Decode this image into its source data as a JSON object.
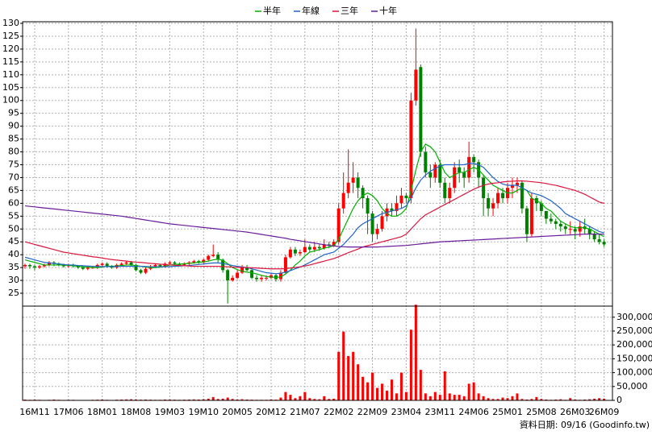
{
  "chart_data": [
    {
      "type": "candlestick",
      "categories": [
        null,
        null,
        "16M11",
        null,
        null,
        null,
        null,
        null,
        null,
        "17M06",
        null,
        null,
        null,
        null,
        null,
        null,
        "18M01",
        null,
        null,
        null,
        null,
        null,
        null,
        "18M08",
        null,
        null,
        null,
        null,
        null,
        null,
        "19M03",
        null,
        null,
        null,
        null,
        null,
        null,
        "19M10",
        null,
        null,
        null,
        null,
        null,
        null,
        "20M05",
        null,
        null,
        null,
        null,
        null,
        null,
        "20M12",
        null,
        null,
        null,
        null,
        null,
        null,
        "21M07",
        null,
        null,
        null,
        null,
        null,
        null,
        "22M02",
        null,
        null,
        null,
        null,
        null,
        null,
        "22M09",
        null,
        null,
        null,
        null,
        null,
        null,
        "23M04",
        null,
        null,
        null,
        null,
        null,
        null,
        "23M11",
        null,
        null,
        null,
        null,
        null,
        null,
        "24M06",
        null,
        null,
        null,
        null,
        null,
        null,
        "25M01",
        null,
        null,
        null,
        null,
        null,
        null,
        "25M08",
        null,
        null,
        null,
        null,
        null,
        null,
        "26M03",
        null,
        null,
        null,
        null,
        null,
        "26M09"
      ],
      "open": [
        35.5,
        36,
        35.5,
        35,
        35.5,
        36,
        37,
        36.5,
        36,
        35.5,
        36,
        35.5,
        35,
        34.5,
        35,
        35,
        36,
        36.5,
        35.5,
        35,
        36,
        36.5,
        37,
        36,
        34,
        33,
        34.5,
        35.5,
        36,
        35.5,
        36.5,
        37,
        36.5,
        36,
        36.5,
        37,
        37.5,
        37,
        38,
        39.5,
        40,
        38,
        34,
        30,
        31,
        33,
        35,
        34,
        31,
        30.5,
        31,
        31,
        32,
        30.5,
        33,
        39,
        42,
        40.5,
        41,
        43,
        42,
        43,
        42.5,
        44,
        43.5,
        45,
        58,
        64,
        68,
        70,
        66,
        62,
        56,
        48,
        50,
        55,
        58,
        57,
        60,
        63,
        62,
        100,
        113,
        80,
        72,
        70,
        75,
        68,
        62,
        66,
        74,
        72,
        70,
        78,
        76,
        70,
        62,
        58,
        60,
        64,
        62,
        66,
        67,
        68,
        58,
        48,
        62,
        60,
        57,
        54,
        53,
        52,
        51,
        50,
        50,
        49,
        51,
        50,
        48,
        46,
        45
      ],
      "high": [
        36.5,
        36.5,
        36,
        36,
        36.5,
        37.5,
        37.5,
        37,
        36.5,
        36.5,
        36.5,
        36,
        35.5,
        35.5,
        35.5,
        36.5,
        37,
        37,
        36,
        36.5,
        37,
        37.5,
        37.5,
        36.5,
        34.5,
        35,
        36,
        36.5,
        36.5,
        37,
        37.5,
        37.5,
        37,
        37,
        37.5,
        38,
        38,
        38.5,
        40,
        44,
        41,
        38.5,
        34.5,
        32,
        34,
        36,
        36,
        34.5,
        32,
        32,
        32,
        33,
        32.5,
        34,
        40,
        43,
        43,
        42,
        46,
        44,
        45,
        44,
        46,
        45,
        46,
        60,
        72,
        81,
        76,
        72,
        67,
        63,
        57,
        52,
        57,
        60,
        60,
        63,
        66,
        64,
        103,
        128,
        114,
        82,
        75,
        76,
        77,
        70,
        68,
        76,
        77,
        74,
        84,
        79,
        77,
        71,
        64,
        62,
        66,
        66,
        68,
        70,
        70,
        69,
        59,
        64,
        63,
        61,
        57,
        56,
        54,
        53,
        52,
        53,
        51,
        53,
        54,
        51,
        49,
        48,
        46
      ],
      "low": [
        34.5,
        34.5,
        34,
        34.5,
        35,
        35.5,
        35.5,
        35.5,
        35,
        35,
        35,
        34.5,
        34,
        34,
        34.5,
        34.5,
        35.5,
        35,
        34.5,
        34.5,
        35.5,
        36,
        35.5,
        33.5,
        32.5,
        32.5,
        34,
        35,
        35,
        35,
        36,
        36,
        35.5,
        35.5,
        36,
        36.5,
        36.5,
        36.5,
        37.5,
        39,
        37,
        33,
        21,
        29.5,
        30.5,
        32.5,
        33.5,
        30.5,
        29.5,
        29.5,
        30,
        30.5,
        29.5,
        29.5,
        32.5,
        38.5,
        39.5,
        39.5,
        40.5,
        41,
        41,
        41.5,
        42,
        42.5,
        43,
        44,
        56,
        62,
        64,
        62,
        58,
        48,
        45,
        46,
        49,
        53,
        55,
        55,
        58,
        60,
        60,
        98,
        78,
        70,
        66,
        68,
        66,
        60,
        60,
        64,
        68,
        66,
        68,
        72,
        66,
        55,
        55,
        55,
        58,
        60,
        60,
        62,
        64,
        56,
        45,
        47,
        57,
        55,
        52,
        52,
        50,
        49,
        48,
        48,
        46,
        47,
        48,
        46,
        45,
        44,
        43
      ],
      "close": [
        36,
        35.5,
        35,
        35.5,
        36,
        37,
        36.5,
        36,
        35.5,
        36,
        35.5,
        35,
        34.5,
        35,
        35,
        36,
        36.5,
        35.5,
        35,
        36,
        36.5,
        37,
        36,
        34,
        33,
        34.5,
        35.5,
        36,
        35.5,
        36.5,
        37,
        36.5,
        36,
        36.5,
        37,
        37.5,
        37,
        38,
        39.5,
        40,
        38,
        34,
        30,
        31,
        33,
        35,
        34,
        31,
        30.5,
        31,
        31,
        32,
        30.5,
        33,
        39,
        42,
        40.5,
        41,
        43,
        42,
        43,
        42.5,
        44,
        43.5,
        45,
        58,
        64,
        68,
        70,
        66,
        62,
        56,
        48,
        50,
        55,
        58,
        57,
        60,
        63,
        62,
        100,
        112,
        80,
        72,
        70,
        75,
        68,
        62,
        66,
        74,
        72,
        70,
        78,
        76,
        70,
        62,
        58,
        60,
        64,
        62,
        66,
        67,
        68,
        58,
        48,
        62,
        60,
        57,
        54,
        53,
        52,
        51,
        50,
        50,
        49,
        51,
        50,
        48,
        46,
        45,
        44
      ],
      "up_color": "#ff0000",
      "down_color": "#008000",
      "series": [
        {
          "name": "半年",
          "color": "#00b000",
          "values": [
            38,
            37.5,
            37,
            36.5,
            36,
            36,
            36,
            36,
            36,
            35.8,
            35.7,
            35.5,
            35.3,
            35.2,
            35,
            35,
            35.2,
            35.5,
            35.5,
            35.6,
            35.8,
            36,
            36,
            35.8,
            35.5,
            35.2,
            35,
            35,
            35.2,
            35.5,
            36,
            36.2,
            36.3,
            36.5,
            36.6,
            36.8,
            37,
            37.2,
            37.5,
            38,
            38.3,
            37.8,
            36.5,
            35,
            34.2,
            33.6,
            33.2,
            33,
            32.5,
            32,
            31.5,
            31.3,
            31.2,
            31.3,
            32.5,
            34,
            36,
            37.5,
            39.5,
            41,
            41.5,
            42,
            42.5,
            43,
            43.5,
            46,
            50,
            54,
            58,
            61,
            63,
            64,
            63,
            61,
            58,
            56,
            55,
            55,
            56,
            58,
            65,
            73,
            80,
            83,
            82,
            80,
            76,
            72,
            70,
            71,
            72,
            72,
            73,
            74,
            73,
            71,
            69,
            67,
            66,
            65,
            64,
            64,
            65,
            66,
            65,
            62,
            61,
            60,
            58,
            57,
            55,
            53,
            52,
            51,
            50.5,
            50.5,
            50.5,
            50,
            49,
            48,
            47
          ]
        },
        {
          "name": "年線",
          "color": "#1e64c8",
          "values": [
            39,
            38.5,
            38,
            37.5,
            37,
            36.8,
            36.6,
            36.4,
            36.2,
            36,
            36,
            35.8,
            35.7,
            35.6,
            35.5,
            35.4,
            35.4,
            35.4,
            35.4,
            35.4,
            35.5,
            35.5,
            35.5,
            35.5,
            35.5,
            35.4,
            35.3,
            35.3,
            35.3,
            35.3,
            35.4,
            35.5,
            35.6,
            35.7,
            35.8,
            36,
            36.2,
            36.4,
            36.6,
            36.8,
            36.8,
            36.6,
            36.2,
            35.8,
            35.5,
            35.2,
            35,
            34.5,
            34,
            33.5,
            33,
            32.8,
            32.6,
            32.8,
            33.2,
            33.8,
            34.5,
            35.2,
            36,
            37,
            38,
            39,
            40,
            40.5,
            41,
            42.5,
            44,
            46,
            48,
            50.5,
            52,
            53,
            54,
            55,
            56,
            56.5,
            57,
            57.5,
            58,
            59,
            62,
            66,
            69,
            71,
            72.5,
            73.5,
            74.5,
            75,
            75,
            75,
            75,
            75,
            75.5,
            75.5,
            75,
            74,
            72,
            70,
            68.5,
            67.5,
            67,
            67,
            67,
            66,
            65,
            64,
            63.5,
            63,
            62,
            61,
            59.5,
            58,
            56,
            55,
            54,
            53,
            52,
            51,
            50,
            49,
            48.5
          ]
        },
        {
          "name": "三年",
          "color": "#dc143c",
          "values": [
            45,
            44.5,
            44,
            43.5,
            43,
            42.5,
            42,
            41.5,
            41,
            40.7,
            40.4,
            40.1,
            39.8,
            39.5,
            39.2,
            39,
            38.7,
            38.4,
            38.1,
            37.9,
            37.7,
            37.5,
            37.3,
            37.1,
            37,
            36.8,
            36.6,
            36.5,
            36.3,
            36.2,
            36,
            35.9,
            35.8,
            35.7,
            35.6,
            35.5,
            35.5,
            35.5,
            35.5,
            35.5,
            35.5,
            35.4,
            35.3,
            35.2,
            35.1,
            35,
            35,
            34.9,
            34.8,
            34.7,
            34.6,
            34.5,
            34.5,
            34.5,
            34.6,
            34.8,
            35,
            35.3,
            35.6,
            36,
            36.5,
            37,
            37.5,
            38,
            38.5,
            39.2,
            40,
            40.8,
            41.5,
            42.2,
            43,
            43.5,
            44,
            44.5,
            45,
            45.5,
            46,
            46.5,
            47,
            48,
            50,
            52,
            54,
            55.5,
            56.5,
            57.5,
            58.5,
            59.5,
            60.5,
            61.5,
            62.5,
            63.5,
            64.5,
            65.5,
            66.3,
            67,
            67.5,
            67.8,
            68,
            68.3,
            68.5,
            68.6,
            68.7,
            68.7,
            68.6,
            68.4,
            68.2,
            68,
            67.7,
            67.3,
            67,
            66.5,
            66,
            65.5,
            65,
            64.3,
            63.5,
            62.5,
            61.5,
            60.5,
            60
          ]
        },
        {
          "name": "十年",
          "color": "#6a1b9a",
          "values": [
            59,
            58.8,
            58.6,
            58.4,
            58.2,
            58,
            57.8,
            57.6,
            57.4,
            57.2,
            57,
            56.8,
            56.6,
            56.4,
            56.2,
            56,
            55.8,
            55.6,
            55.4,
            55.2,
            55,
            54.7,
            54.4,
            54.1,
            53.8,
            53.5,
            53.2,
            52.9,
            52.6,
            52.3,
            52,
            51.8,
            51.6,
            51.4,
            51.2,
            51,
            50.8,
            50.6,
            50.4,
            50.2,
            50,
            49.8,
            49.6,
            49.4,
            49.2,
            49,
            48.8,
            48.5,
            48.2,
            47.9,
            47.6,
            47.3,
            47,
            46.7,
            46.4,
            46,
            45.7,
            45.4,
            45.1,
            44.8,
            44.5,
            44.2,
            43.9,
            43.6,
            43.4,
            43.2,
            43.1,
            43,
            43,
            43,
            43,
            43,
            43,
            43,
            43.1,
            43.2,
            43.3,
            43.4,
            43.5,
            43.6,
            43.8,
            44,
            44.2,
            44.4,
            44.6,
            44.8,
            45,
            45.1,
            45.2,
            45.3,
            45.4,
            45.5,
            45.6,
            45.7,
            45.8,
            45.9,
            46,
            46.1,
            46.2,
            46.3,
            46.4,
            46.5,
            46.6,
            46.7,
            46.8,
            46.9,
            47,
            47.1,
            47.2,
            47.3,
            47.4,
            47.5,
            47.6,
            47.7,
            47.8,
            47.9,
            48,
            48,
            48,
            48,
            48
          ]
        }
      ],
      "ylim": [
        20,
        130
      ],
      "yticks": [
        25,
        30,
        35,
        40,
        45,
        50,
        55,
        60,
        65,
        70,
        75,
        80,
        85,
        90,
        95,
        100,
        105,
        110,
        115,
        120,
        125,
        130
      ],
      "grid": true
    },
    {
      "type": "bar",
      "color": "#ff0000",
      "values": [
        3000,
        2000,
        2500,
        2000,
        1500,
        2000,
        3000,
        2000,
        1500,
        2000,
        2000,
        1500,
        1500,
        1500,
        2000,
        2500,
        3000,
        2000,
        1500,
        2500,
        3000,
        3500,
        4000,
        3000,
        2500,
        3000,
        2500,
        2000,
        2000,
        3000,
        3000,
        2500,
        2000,
        2500,
        3000,
        3500,
        3000,
        4000,
        6000,
        12000,
        5000,
        6000,
        10000,
        5000,
        3000,
        4000,
        3000,
        2500,
        2000,
        2000,
        2000,
        3000,
        2500,
        10000,
        30000,
        20000,
        8000,
        15000,
        30000,
        8000,
        5000,
        4000,
        15000,
        5000,
        6000,
        175000,
        248000,
        160000,
        175000,
        130000,
        85000,
        65000,
        100000,
        45000,
        60000,
        35000,
        75000,
        25000,
        100000,
        30000,
        255000,
        345000,
        110000,
        25000,
        15000,
        30000,
        20000,
        105000,
        25000,
        20000,
        20000,
        15000,
        60000,
        65000,
        25000,
        15000,
        8000,
        5000,
        5000,
        10000,
        8000,
        15000,
        25000,
        5000,
        3000,
        5000,
        12000,
        5000,
        3000,
        2000,
        3000,
        4000,
        2000,
        8000,
        3000,
        2000,
        3000,
        4000,
        6000,
        8000,
        6000
      ],
      "ylim": [
        0,
        340000
      ],
      "yticks": [
        0,
        {
          "value": 50000,
          "label": "50,000"
        },
        {
          "value": 100000,
          "label": "100,000"
        },
        {
          "value": 150000,
          "label": "150,000"
        },
        {
          "value": 200000,
          "label": "200,000"
        },
        {
          "value": 250000,
          "label": "250,000"
        },
        {
          "value": 300000,
          "label": "300,000"
        }
      ],
      "grid": true
    }
  ],
  "footer": "資料日期: 09/16 (Goodinfo.tw)"
}
